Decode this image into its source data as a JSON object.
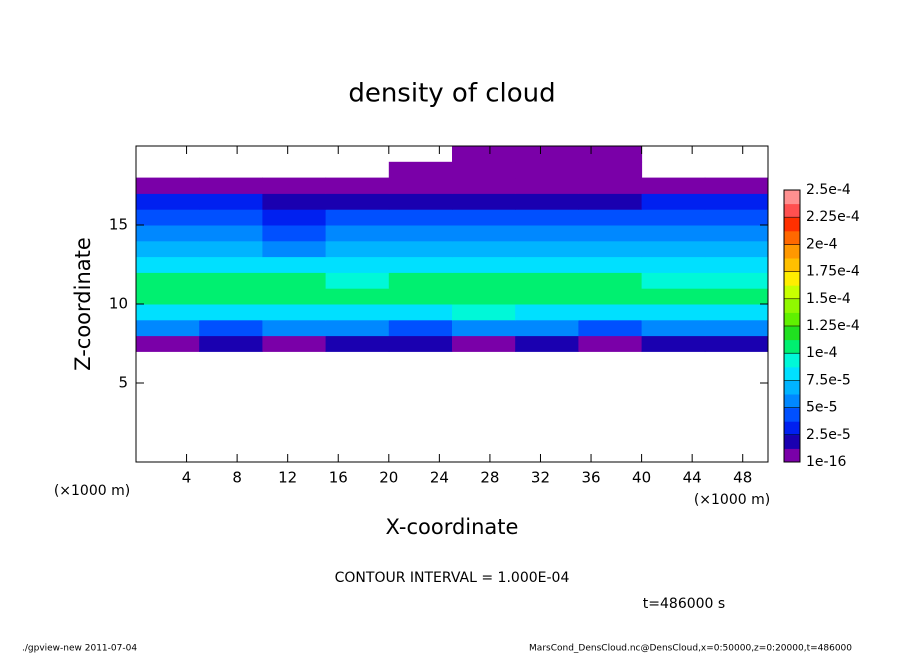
{
  "chart_data": {
    "type": "heatmap",
    "title": "density of cloud",
    "x_label": "X-coordinate",
    "y_label": "Z-coordinate",
    "x_unit": "(×1000 m)",
    "y_unit": "(×1000 m)",
    "contour_note": "CONTOUR INTERVAL = 1.000E-04",
    "time_note": "t=486000 s",
    "footer_left": "./gpview-new  2011-07-04",
    "footer_right": "MarsCond_DensCloud.nc@DensCloud,x=0:50000,z=0:20000,t=486000",
    "xlim": [
      0,
      50
    ],
    "ylim": [
      0,
      20
    ],
    "xticks": [
      4,
      8,
      12,
      16,
      20,
      24,
      28,
      32,
      36,
      40,
      44,
      48
    ],
    "yticks": [
      5,
      10,
      15
    ],
    "x": [
      2.5,
      7.5,
      12.5,
      17.5,
      22.5,
      27.5,
      32.5,
      37.5,
      42.5,
      47.5
    ],
    "y": [
      7.5,
      8.5,
      9.5,
      10.5,
      11.5,
      12.5,
      13.5,
      14.5,
      15.5,
      16.5,
      17.5,
      18.5,
      19.5
    ],
    "values": [
      [
        1.2e-05,
        1.5e-05,
        1e-05,
        1.4e-05,
        1.3e-05,
        1.1e-05,
        1.5e-05,
        1.2e-05,
        1.4e-05,
        1.3e-05
      ],
      [
        5e-05,
        4.5e-05,
        5.5e-05,
        5e-05,
        4e-05,
        5.5e-05,
        5e-05,
        4.5e-05,
        5.5e-05,
        5e-05
      ],
      [
        8.5e-05,
        8e-05,
        8.5e-05,
        8e-05,
        8.5e-05,
        9e-05,
        8.5e-05,
        8.5e-05,
        8e-05,
        8.5e-05
      ],
      [
        0.000105,
        0.00011,
        0.00011,
        0.000105,
        0.00011,
        0.00011,
        0.000105,
        0.000105,
        0.0001,
        0.0001
      ],
      [
        0.0001,
        0.00011,
        0.000105,
        9.5e-05,
        0.000105,
        0.000105,
        0.0001,
        0.000105,
        9.5e-05,
        9.5e-05
      ],
      [
        8e-05,
        8e-05,
        7.5e-05,
        7.5e-05,
        8e-05,
        8.5e-05,
        8.5e-05,
        8e-05,
        8e-05,
        7.5e-05
      ],
      [
        6.5e-05,
        6.5e-05,
        6e-05,
        6.5e-05,
        7e-05,
        7e-05,
        7e-05,
        6.5e-05,
        6.5e-05,
        6.5e-05
      ],
      [
        5e-05,
        5e-05,
        4.5e-05,
        5.5e-05,
        6e-05,
        6e-05,
        6e-05,
        5.5e-05,
        5.5e-05,
        5e-05
      ],
      [
        4e-05,
        4e-05,
        3.5e-05,
        4e-05,
        4.5e-05,
        4.5e-05,
        4.5e-05,
        4.5e-05,
        4e-05,
        4e-05
      ],
      [
        2.5e-05,
        2.5e-05,
        2e-05,
        2e-05,
        2e-05,
        2e-05,
        2e-05,
        2e-05,
        2.5e-05,
        2.5e-05
      ],
      [
        5e-06,
        5e-06,
        5e-06,
        5e-06,
        5e-06,
        5e-06,
        5e-06,
        5e-06,
        5e-06,
        5e-06
      ],
      [
        null,
        null,
        null,
        null,
        5e-06,
        5e-06,
        5e-06,
        5e-06,
        null,
        null
      ],
      [
        null,
        null,
        null,
        null,
        null,
        5e-06,
        5e-06,
        5e-06,
        null,
        null
      ]
    ],
    "colorbar": {
      "ticks": [
        {
          "value": 1e-16,
          "label": "1e-16"
        },
        {
          "value": 2.5e-05,
          "label": "2.5e-5"
        },
        {
          "value": 5e-05,
          "label": "5e-5"
        },
        {
          "value": 7.5e-05,
          "label": "7.5e-5"
        },
        {
          "value": 0.0001,
          "label": "1e-4"
        },
        {
          "value": 0.000125,
          "label": "1.25e-4"
        },
        {
          "value": 0.00015,
          "label": "1.5e-4"
        },
        {
          "value": 0.000175,
          "label": "1.75e-4"
        },
        {
          "value": 0.0002,
          "label": "2e-4"
        },
        {
          "value": 0.000225,
          "label": "2.25e-4"
        },
        {
          "value": 0.00025,
          "label": "2.5e-4"
        }
      ],
      "colors": [
        "#7a00a8",
        "#1a00b0",
        "#0020f0",
        "#0050ff",
        "#0088ff",
        "#00b4ff",
        "#00e0ff",
        "#00f8d8",
        "#00f070",
        "#20e020",
        "#60f000",
        "#90f800",
        "#c8ff00",
        "#ffee00",
        "#ffc000",
        "#ff9800",
        "#ff6800",
        "#ff3000",
        "#ff5050",
        "#ff9090"
      ]
    }
  }
}
